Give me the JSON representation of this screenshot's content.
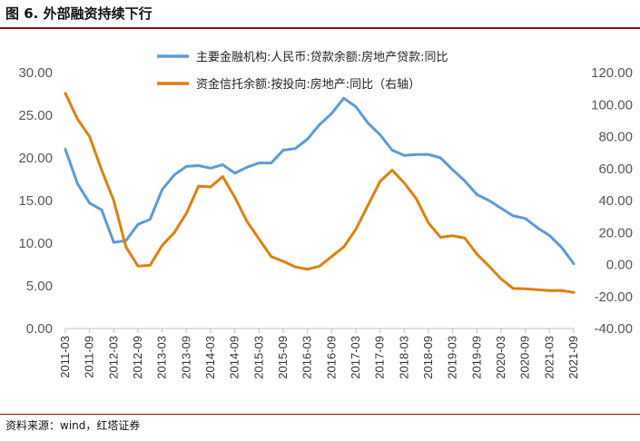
{
  "figure": {
    "title": "图 6. 外部融资持续下行",
    "source": "资料来源：wind，红塔证券"
  },
  "chart_data": {
    "type": "line",
    "x_ticks": [
      "2011-03",
      "2011-09",
      "2012-03",
      "2012-09",
      "2013-03",
      "2013-09",
      "2014-03",
      "2014-09",
      "2015-03",
      "2015-09",
      "2016-03",
      "2016-09",
      "2017-03",
      "2017-09",
      "2018-03",
      "2018-09",
      "2019-03",
      "2019-09",
      "2020-03",
      "2020-09",
      "2021-03",
      "2021-09"
    ],
    "left_axis": {
      "min": 0,
      "max": 30,
      "ticks": [
        "0.00",
        "5.00",
        "10.00",
        "15.00",
        "20.00",
        "25.00",
        "30.00"
      ]
    },
    "right_axis": {
      "min": -40,
      "max": 120,
      "ticks": [
        "-40.00",
        "-20.00",
        "0.00",
        "20.00",
        "40.00",
        "60.00",
        "80.00",
        "100.00",
        "120.00"
      ]
    },
    "series": [
      {
        "name": "主要金融机构:人民币:贷款余额:房地产贷款:同比",
        "axis": "left",
        "color": "#5b9bd5",
        "points": [
          [
            0,
            21.0
          ],
          [
            0.5,
            17.0
          ],
          [
            1,
            14.7
          ],
          [
            1.5,
            13.9
          ],
          [
            2,
            10.1
          ],
          [
            2.5,
            10.3
          ],
          [
            3,
            12.2
          ],
          [
            3.5,
            12.8
          ],
          [
            4,
            16.3
          ],
          [
            4.5,
            18.0
          ],
          [
            5,
            19.0
          ],
          [
            5.5,
            19.1
          ],
          [
            6,
            18.8
          ],
          [
            6.5,
            19.2
          ],
          [
            7,
            18.2
          ],
          [
            7.5,
            18.9
          ],
          [
            8,
            19.4
          ],
          [
            8.5,
            19.4
          ],
          [
            9,
            20.9
          ],
          [
            9.5,
            21.1
          ],
          [
            10,
            22.2
          ],
          [
            10.5,
            23.9
          ],
          [
            11,
            25.2
          ],
          [
            11.5,
            27.0
          ],
          [
            12,
            26.0
          ],
          [
            12.5,
            24.1
          ],
          [
            13,
            22.7
          ],
          [
            13.5,
            20.9
          ],
          [
            14,
            20.3
          ],
          [
            14.5,
            20.4
          ],
          [
            15,
            20.4
          ],
          [
            15.5,
            20.0
          ],
          [
            16,
            18.6
          ],
          [
            16.5,
            17.3
          ],
          [
            17,
            15.7
          ],
          [
            17.5,
            15.0
          ],
          [
            18,
            14.1
          ],
          [
            18.5,
            13.2
          ],
          [
            19,
            12.9
          ],
          [
            19.5,
            11.8
          ],
          [
            20,
            10.9
          ],
          [
            20.5,
            9.5
          ],
          [
            21,
            7.6
          ]
        ]
      },
      {
        "name": "资金信托余额:按投向:房地产:同比（右轴）",
        "axis": "right",
        "color": "#d9820f",
        "points": [
          [
            0,
            107
          ],
          [
            0.5,
            91
          ],
          [
            1,
            80
          ],
          [
            1.5,
            59
          ],
          [
            2,
            40
          ],
          [
            2.5,
            11
          ],
          [
            3,
            -1
          ],
          [
            3.5,
            -0.5
          ],
          [
            4,
            12
          ],
          [
            4.5,
            20
          ],
          [
            5,
            32
          ],
          [
            5.5,
            49
          ],
          [
            6,
            48.5
          ],
          [
            6.5,
            55
          ],
          [
            7,
            42
          ],
          [
            7.5,
            27
          ],
          [
            8,
            16
          ],
          [
            8.5,
            5
          ],
          [
            9,
            2
          ],
          [
            9.5,
            -1.5
          ],
          [
            10,
            -3
          ],
          [
            10.5,
            -1
          ],
          [
            11,
            5
          ],
          [
            11.5,
            11
          ],
          [
            12,
            22
          ],
          [
            12.5,
            37
          ],
          [
            13,
            52
          ],
          [
            13.5,
            59
          ],
          [
            14,
            51
          ],
          [
            14.5,
            41
          ],
          [
            15,
            26
          ],
          [
            15.5,
            17
          ],
          [
            16,
            18
          ],
          [
            16.5,
            16.5
          ],
          [
            17,
            6.5
          ],
          [
            17.5,
            -1
          ],
          [
            18,
            -9
          ],
          [
            18.5,
            -15
          ],
          [
            19,
            -15.2
          ],
          [
            19.5,
            -15.8
          ],
          [
            20,
            -16.3
          ],
          [
            20.5,
            -16.2
          ],
          [
            21,
            -17.5
          ]
        ]
      }
    ]
  }
}
